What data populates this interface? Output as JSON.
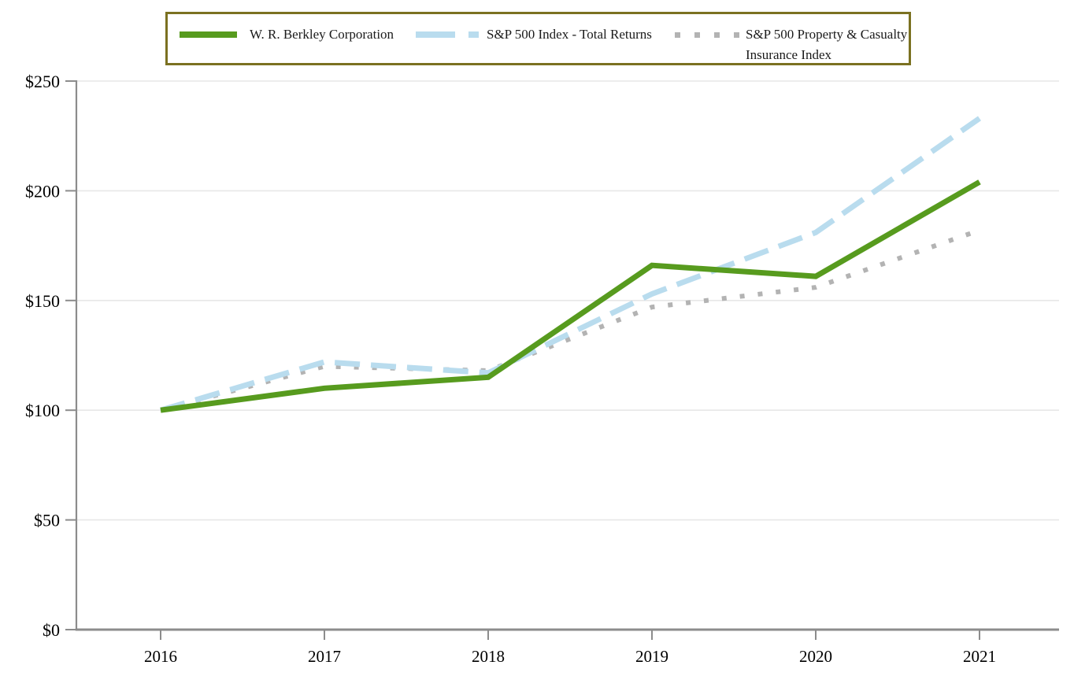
{
  "chart_data": {
    "type": "line",
    "title": "",
    "x_categories": [
      "2016",
      "2017",
      "2018",
      "2019",
      "2020",
      "2021"
    ],
    "series": [
      {
        "name": "W. R. Berkley Corporation",
        "values": [
          100,
          110,
          115,
          166,
          161,
          204
        ],
        "color": "#579b1e",
        "line_style": "solid"
      },
      {
        "name": "S&P 500 Index - Total Returns",
        "values": [
          100,
          122,
          117,
          153,
          181,
          233
        ],
        "color": "#b9dcee",
        "line_style": "dashed"
      },
      {
        "name": "S&P 500 Property & Casualty Insurance Index",
        "values": [
          100,
          120,
          118,
          147,
          156,
          182
        ],
        "color": "#b3b3b3",
        "line_style": "dotted"
      }
    ],
    "ylim": [
      0,
      250
    ],
    "yticks": [
      0,
      50,
      100,
      150,
      200,
      250
    ],
    "ytick_labels": [
      "$0",
      "$50",
      "$100",
      "$150",
      "$200",
      "$250"
    ],
    "grid": "horizontal",
    "legend_position": "top",
    "legend_border_color": "#7b7121",
    "axis_color": "#8c8c8c",
    "gridline_color": "#e7e7e7"
  }
}
